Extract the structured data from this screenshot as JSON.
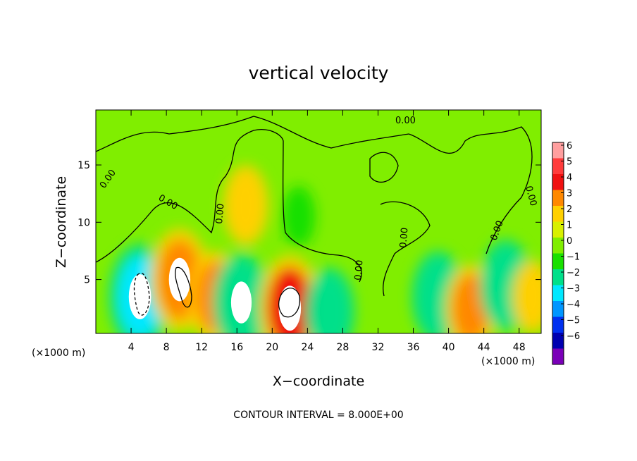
{
  "chart_data": {
    "type": "heatmap",
    "title": "vertical velocity",
    "xlabel": "X−coordinate",
    "ylabel": "Z−coordinate",
    "x_unit_label": "(×1000 m)",
    "xlim": [
      0,
      50.5
    ],
    "ylim": [
      0.3,
      19.8
    ],
    "x_ticks": [
      4,
      8,
      12,
      16,
      20,
      24,
      28,
      32,
      36,
      40,
      44,
      48
    ],
    "y_ticks": [
      5,
      10,
      15
    ],
    "colorbar": {
      "ticks": [
        6,
        5,
        4,
        3,
        2,
        1,
        0,
        -1,
        -2,
        -3,
        -4,
        -5,
        -6
      ],
      "tick_labels": [
        "6",
        "5",
        "4",
        "3",
        "2",
        "1",
        "0",
        "−1",
        "−2",
        "−3",
        "−4",
        "−5",
        "−6"
      ],
      "colors": [
        "#ff9f9f",
        "#ff3b3b",
        "#f01010",
        "#ff8800",
        "#ffd000",
        "#d8f000",
        "#80ee00",
        "#18e000",
        "#00e08a",
        "#00e8ff",
        "#0096ff",
        "#0030f0",
        "#0000b0",
        "#7a00b8"
      ]
    },
    "contour_labels": [
      "0.00",
      "0.00",
      "0.00",
      "0.00",
      "0.00",
      "0.00",
      "0.00",
      "0.00"
    ],
    "contour_interval_text": "CONTOUR INTERVAL =  8.000E+00",
    "cells": [
      {
        "x": 5.0,
        "z": 3.5,
        "w": -3.6
      },
      {
        "x": 9.5,
        "z": 5.0,
        "w": 3.4
      },
      {
        "x": 13.5,
        "z": 3.5,
        "w": 2.8
      },
      {
        "x": 16.5,
        "z": 3.0,
        "w": -3.2
      },
      {
        "x": 22.0,
        "z": 2.5,
        "w": 3.6
      },
      {
        "x": 26.5,
        "z": 2.2,
        "w": -2.6
      },
      {
        "x": 17.0,
        "z": 11.5,
        "w": 2.2
      },
      {
        "x": 23.0,
        "z": 10.5,
        "w": -1.2
      },
      {
        "x": 38.8,
        "z": 3.5,
        "w": -2.8
      },
      {
        "x": 42.5,
        "z": 2.5,
        "w": 2.6
      },
      {
        "x": 46.5,
        "z": 4.5,
        "w": -2.8
      },
      {
        "x": 49.5,
        "z": 3.5,
        "w": 1.8
      }
    ]
  },
  "ui": {
    "colorbar_label_hidden": ""
  }
}
